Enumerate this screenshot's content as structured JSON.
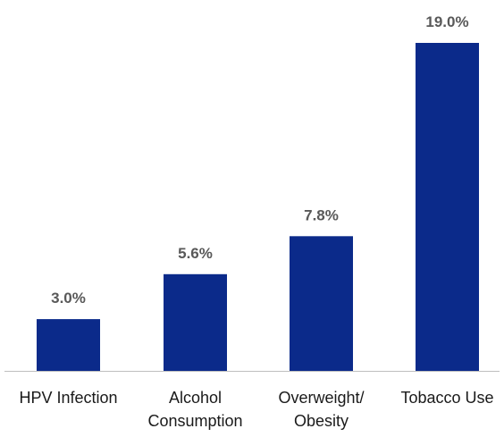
{
  "chart_data": {
    "type": "bar",
    "categories": [
      [
        "HPV Infection"
      ],
      [
        "Alcohol",
        "Consumption"
      ],
      [
        "Overweight/",
        "Obesity"
      ],
      [
        "Tobacco Use"
      ]
    ],
    "values": [
      3.0,
      5.6,
      7.8,
      19.0
    ],
    "value_labels": [
      "3.0%",
      "5.6%",
      "7.8%",
      "19.0%"
    ],
    "ylim": [
      0,
      19.0
    ],
    "bar_color": "#0B2A8A",
    "grid": false,
    "legend": "none"
  }
}
